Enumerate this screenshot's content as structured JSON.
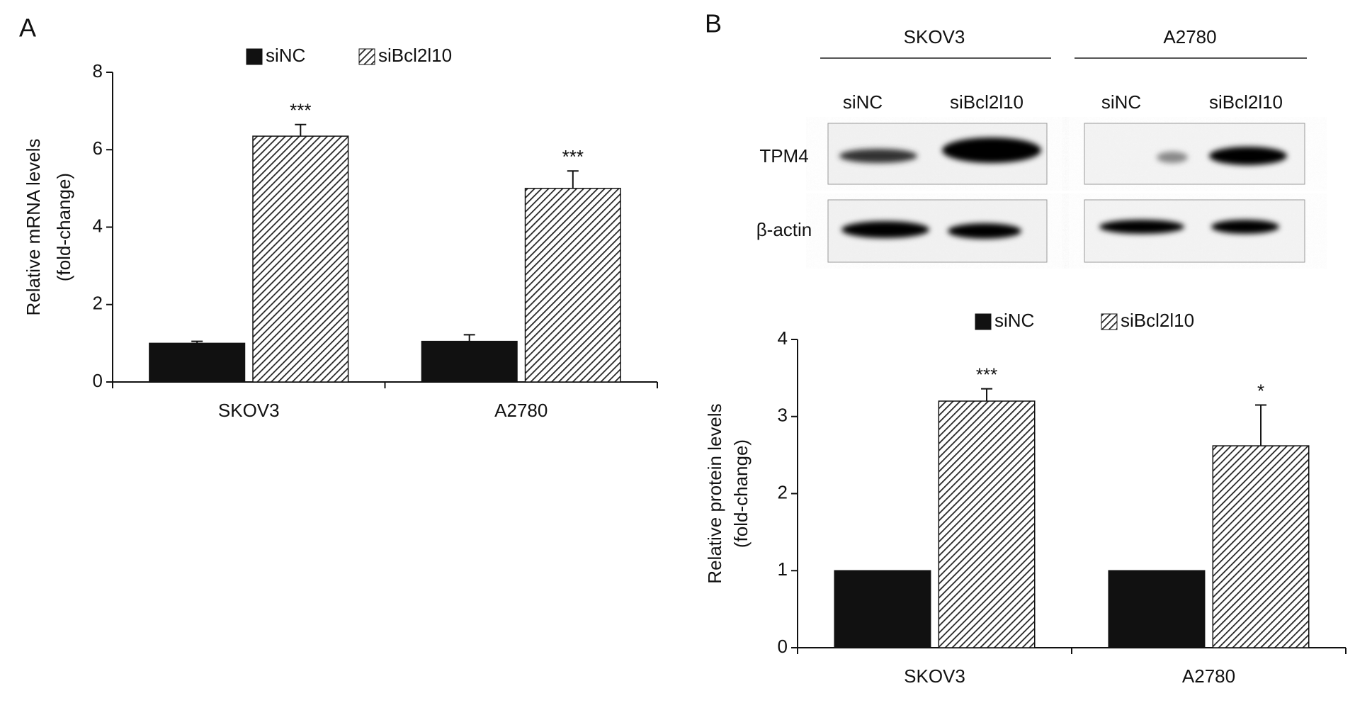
{
  "panels": [
    "A",
    "B"
  ],
  "blot": {
    "groups": [
      "SKOV3",
      "A2780"
    ],
    "lanes": [
      "siNC",
      "siBcl2l10",
      "siNC",
      "siBcl2l10"
    ],
    "proteins": [
      "TPM4",
      "β-actin"
    ]
  },
  "chart_data": [
    {
      "type": "bar",
      "categories": [
        "SKOV3",
        "A2780"
      ],
      "ylabel": [
        "Relative mRNA levels",
        "(fold-change)"
      ],
      "series": [
        {
          "name": "siNC",
          "color": "#111111",
          "values": [
            1.0,
            1.05
          ],
          "errors": [
            0.05,
            0.17
          ]
        },
        {
          "name": "siBcl2l10",
          "color": "#222222",
          "pattern": "hatch",
          "values": [
            6.35,
            5.0
          ],
          "errors": [
            0.3,
            0.45
          ],
          "significance": [
            "***",
            "***"
          ]
        }
      ],
      "ylim": [
        0,
        8
      ],
      "yticks": [
        0,
        2,
        4,
        6,
        8
      ]
    },
    {
      "type": "bar",
      "categories": [
        "SKOV3",
        "A2780"
      ],
      "ylabel": [
        "Relative protein levels",
        "(fold-change)"
      ],
      "series": [
        {
          "name": "siNC",
          "color": "#111111",
          "values": [
            1,
            1
          ]
        },
        {
          "name": "siBcl2l10",
          "color": "#222222",
          "pattern": "hatch",
          "values": [
            3.2,
            2.62
          ],
          "errors": [
            0.16,
            0.53
          ],
          "significance": [
            "***",
            "*"
          ]
        }
      ],
      "ylim": [
        0,
        4
      ],
      "yticks": [
        0,
        1,
        2,
        3,
        4
      ]
    }
  ]
}
